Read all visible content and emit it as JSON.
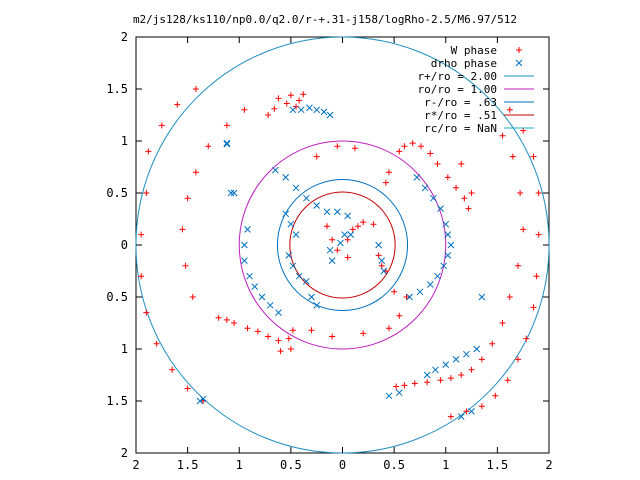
{
  "chart_data": {
    "type": "scatter",
    "title": "m2/js128/ks110/np0.0/q2.0/r-+.31-j158/logRho-2.5/M6.97/512",
    "xlabel": "",
    "ylabel": "",
    "xlim": [
      -2,
      2
    ],
    "ylim": [
      -2,
      2
    ],
    "x_tick_labels": [
      "2",
      "1.5",
      "1",
      "0.5",
      "0",
      "0.5",
      "1",
      "1.5",
      "2"
    ],
    "y_tick_labels": [
      "2",
      "1.5",
      "1",
      "0.5",
      "0",
      "0.5",
      "1",
      "1.5",
      "2"
    ],
    "x_tick_values": [
      -2,
      -1.5,
      -1,
      -0.5,
      0,
      0.5,
      1,
      1.5,
      2
    ],
    "y_tick_values": [
      2,
      1.5,
      1,
      0.5,
      0,
      -0.5,
      -1,
      -1.5,
      -2
    ],
    "grid": false,
    "legend_position": "top-right",
    "series": [
      {
        "name": "W phase",
        "marker": "plus",
        "color": "#ff0000",
        "points": [
          [
            -0.05,
            0.95
          ],
          [
            0.12,
            0.93
          ],
          [
            -0.25,
            0.85
          ],
          [
            -0.62,
            1.41
          ],
          [
            -0.5,
            1.44
          ],
          [
            -0.42,
            1.39
          ],
          [
            -0.38,
            1.45
          ],
          [
            -0.72,
            1.25
          ],
          [
            -0.66,
            1.31
          ],
          [
            -0.54,
            1.36
          ],
          [
            -0.45,
            1.33
          ],
          [
            0.55,
            0.9
          ],
          [
            0.6,
            0.95
          ],
          [
            0.68,
            0.98
          ],
          [
            0.76,
            0.95
          ],
          [
            0.85,
            0.88
          ],
          [
            0.92,
            0.78
          ],
          [
            1.02,
            0.65
          ],
          [
            1.1,
            0.55
          ],
          [
            1.18,
            0.45
          ],
          [
            1.22,
            0.35
          ],
          [
            1.25,
            0.5
          ],
          [
            1.15,
            0.78
          ],
          [
            0.42,
            0.6
          ],
          [
            0.45,
            0.7
          ],
          [
            -0.15,
            0.18
          ],
          [
            -0.1,
            0.05
          ],
          [
            -0.05,
            -0.05
          ],
          [
            0.05,
            0.05
          ],
          [
            0.1,
            0.15
          ],
          [
            0.15,
            0.18
          ],
          [
            0.2,
            0.22
          ],
          [
            0.3,
            0.2
          ],
          [
            0.05,
            -0.12
          ],
          [
            -0.48,
            -0.82
          ],
          [
            -0.52,
            -0.9
          ],
          [
            -0.62,
            -0.92
          ],
          [
            -0.72,
            -0.88
          ],
          [
            -0.82,
            -0.83
          ],
          [
            -0.92,
            -0.8
          ],
          [
            -1.05,
            -0.75
          ],
          [
            -1.12,
            -0.72
          ],
          [
            -1.2,
            -0.7
          ],
          [
            -0.3,
            -0.82
          ],
          [
            -0.1,
            -0.88
          ],
          [
            0.2,
            -0.85
          ],
          [
            0.45,
            -0.8
          ],
          [
            0.55,
            -0.68
          ],
          [
            0.62,
            -0.5
          ],
          [
            0.35,
            -0.1
          ],
          [
            0.38,
            -0.2
          ],
          [
            0.42,
            -0.25
          ],
          [
            0.5,
            -0.45
          ],
          [
            -1.45,
            -0.5
          ],
          [
            -1.52,
            -0.2
          ],
          [
            -1.55,
            0.15
          ],
          [
            -1.5,
            0.45
          ],
          [
            -1.42,
            0.7
          ],
          [
            -1.3,
            0.95
          ],
          [
            -1.12,
            1.15
          ],
          [
            -0.95,
            1.3
          ],
          [
            -0.6,
            -1.02
          ],
          [
            -0.5,
            -1.0
          ],
          [
            0.52,
            -1.36
          ],
          [
            0.6,
            -1.35
          ],
          [
            0.7,
            -1.33
          ],
          [
            0.82,
            -1.32
          ],
          [
            0.95,
            -1.3
          ],
          [
            1.05,
            -1.28
          ],
          [
            1.15,
            -1.25
          ],
          [
            1.25,
            -1.2
          ],
          [
            1.35,
            -1.1
          ],
          [
            1.45,
            -0.95
          ],
          [
            1.55,
            -0.75
          ],
          [
            1.62,
            -0.5
          ],
          [
            1.7,
            -0.2
          ],
          [
            1.75,
            0.15
          ],
          [
            1.72,
            0.5
          ],
          [
            1.65,
            0.85
          ],
          [
            1.55,
            1.05
          ],
          [
            1.9,
            0.1
          ],
          [
            1.88,
            -0.3
          ],
          [
            1.85,
            -0.6
          ],
          [
            1.78,
            -0.9
          ],
          [
            1.7,
            -1.1
          ],
          [
            1.6,
            -1.3
          ],
          [
            1.48,
            -1.45
          ],
          [
            1.35,
            -1.55
          ],
          [
            1.2,
            -1.6
          ],
          [
            1.05,
            -1.65
          ],
          [
            1.9,
            0.5
          ],
          [
            1.85,
            0.85
          ],
          [
            1.75,
            1.1
          ],
          [
            1.62,
            1.3
          ],
          [
            -1.9,
            0.5
          ],
          [
            -1.95,
            0.1
          ],
          [
            -1.95,
            -0.3
          ],
          [
            -1.9,
            -0.65
          ],
          [
            -1.8,
            -0.95
          ],
          [
            -1.65,
            -1.2
          ],
          [
            -1.5,
            -1.38
          ],
          [
            -1.35,
            -1.5
          ],
          [
            -1.88,
            0.9
          ],
          [
            -1.75,
            1.15
          ],
          [
            -1.6,
            1.35
          ],
          [
            -1.42,
            1.5
          ]
        ]
      },
      {
        "name": "drho phase",
        "marker": "cross",
        "color": "#0070c0",
        "points": [
          [
            -0.48,
            1.3
          ],
          [
            -0.4,
            1.3
          ],
          [
            -0.32,
            1.32
          ],
          [
            -0.25,
            1.3
          ],
          [
            -0.18,
            1.28
          ],
          [
            -0.12,
            1.25
          ],
          [
            -1.08,
            0.5
          ],
          [
            -1.12,
            0.98
          ],
          [
            -0.65,
            0.72
          ],
          [
            -0.55,
            0.65
          ],
          [
            -0.45,
            0.55
          ],
          [
            -0.35,
            0.45
          ],
          [
            -0.25,
            0.38
          ],
          [
            -0.15,
            0.32
          ],
          [
            -0.05,
            0.32
          ],
          [
            0.05,
            0.28
          ],
          [
            -0.52,
            -0.1
          ],
          [
            -0.48,
            -0.2
          ],
          [
            -0.45,
            0.1
          ],
          [
            -0.5,
            0.2
          ],
          [
            -0.55,
            0.3
          ],
          [
            -0.42,
            -0.3
          ],
          [
            -0.35,
            -0.35
          ],
          [
            -0.3,
            -0.5
          ],
          [
            -0.25,
            -0.58
          ],
          [
            -0.9,
            -0.3
          ],
          [
            -0.85,
            -0.4
          ],
          [
            -0.78,
            -0.5
          ],
          [
            -0.7,
            -0.58
          ],
          [
            -0.62,
            -0.65
          ],
          [
            -0.95,
            -0.15
          ],
          [
            -0.95,
            0.0
          ],
          [
            -0.92,
            0.15
          ],
          [
            0.72,
            0.65
          ],
          [
            0.8,
            0.55
          ],
          [
            0.88,
            0.45
          ],
          [
            0.95,
            0.35
          ],
          [
            1.0,
            0.2
          ],
          [
            1.02,
            0.1
          ],
          [
            1.05,
            0.0
          ],
          [
            1.02,
            -0.1
          ],
          [
            0.98,
            -0.2
          ],
          [
            0.92,
            -0.3
          ],
          [
            0.85,
            -0.38
          ],
          [
            0.75,
            -0.45
          ],
          [
            0.65,
            -0.5
          ],
          [
            0.35,
            0.0
          ],
          [
            0.38,
            -0.15
          ],
          [
            0.4,
            -0.25
          ],
          [
            0.82,
            -1.25
          ],
          [
            0.9,
            -1.2
          ],
          [
            1.0,
            -1.15
          ],
          [
            1.1,
            -1.1
          ],
          [
            1.2,
            -1.05
          ],
          [
            1.3,
            -1.0
          ],
          [
            0.45,
            -1.45
          ],
          [
            0.55,
            -1.42
          ],
          [
            1.35,
            -0.5
          ],
          [
            -0.02,
            0.02
          ],
          [
            0.02,
            0.1
          ],
          [
            0.08,
            0.1
          ],
          [
            -0.12,
            -0.05
          ],
          [
            -0.1,
            -0.15
          ],
          [
            -1.35,
            -1.48
          ],
          [
            -1.38,
            -1.5
          ],
          [
            1.25,
            -1.6
          ],
          [
            1.15,
            -1.65
          ],
          [
            -1.12,
            0.97
          ],
          [
            -1.05,
            0.5
          ]
        ]
      }
    ],
    "curves": [
      {
        "name": "r+/ro = 2.00",
        "type": "circle",
        "radius": 2.0,
        "color": "#1f8fc0"
      },
      {
        "name": "ro/ro = 1.00",
        "type": "circle",
        "radius": 1.0,
        "color": "#c020c0"
      },
      {
        "name": "r-/ro = .63",
        "type": "circle",
        "radius": 0.63,
        "color": "#0070c0"
      },
      {
        "name": "r*/ro = .51",
        "type": "circle",
        "radius": 0.51,
        "color": "#c00000"
      },
      {
        "name": "rc/ro = NaN",
        "type": "circle",
        "radius": null,
        "color": "#1fb0c0"
      }
    ],
    "legend_labels": [
      {
        "name": "W phase",
        "marker": "plus",
        "color": "#ff0000"
      },
      {
        "name": "drho phase",
        "marker": "cross",
        "color": "#0070c0"
      },
      {
        "name": "r+/ro = 2.00",
        "marker": "line",
        "color": "#1f8fc0"
      },
      {
        "name": "ro/ro = 1.00",
        "marker": "line",
        "color": "#c020c0"
      },
      {
        "name": "r-/ro = .63",
        "marker": "line",
        "color": "#0070c0"
      },
      {
        "name": "r*/ro = .51",
        "marker": "line",
        "color": "#c00000"
      },
      {
        "name": "rc/ro = NaN",
        "marker": "line",
        "color": "#1fb0c0"
      }
    ]
  }
}
